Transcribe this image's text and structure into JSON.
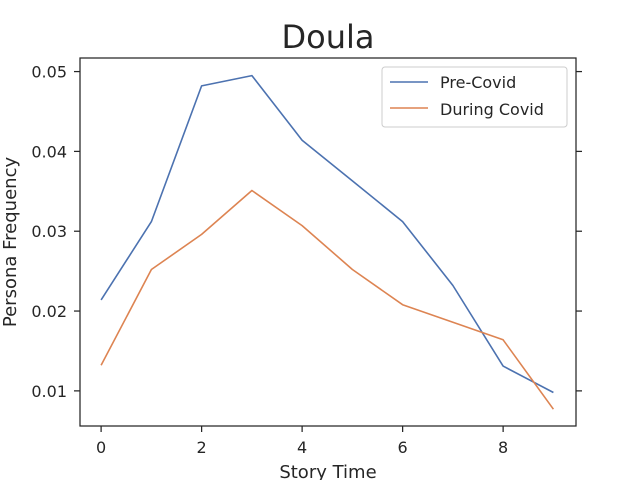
{
  "chart_data": {
    "type": "line",
    "title": "Doula",
    "xlabel": "Story Time",
    "ylabel": "Persona Frequency",
    "x": [
      0,
      1,
      2,
      3,
      4,
      5,
      6,
      7,
      8,
      9
    ],
    "xlim": [
      -0.42,
      9.45
    ],
    "ylim": [
      0.0056,
      0.0517
    ],
    "xticks": [
      0,
      2,
      4,
      6,
      8
    ],
    "yticks": [
      0.01,
      0.02,
      0.03,
      0.04,
      0.05
    ],
    "xtick_labels": [
      "0",
      "2",
      "4",
      "6",
      "8"
    ],
    "ytick_labels": [
      "0.01",
      "0.02",
      "0.03",
      "0.04",
      "0.05"
    ],
    "grid": false,
    "legend_position": "upper right",
    "series": [
      {
        "name": "Pre-Covid",
        "color": "#4c72b0",
        "values": [
          0.0214,
          0.0312,
          0.0482,
          0.0495,
          0.0414,
          0.0363,
          0.0312,
          0.0232,
          0.0131,
          0.0098
        ]
      },
      {
        "name": "During Covid",
        "color": "#dd8452",
        "values": [
          0.0132,
          0.0252,
          0.0296,
          0.0351,
          0.0307,
          0.0252,
          0.0208,
          0.0186,
          0.0164,
          0.0077
        ]
      }
    ]
  }
}
